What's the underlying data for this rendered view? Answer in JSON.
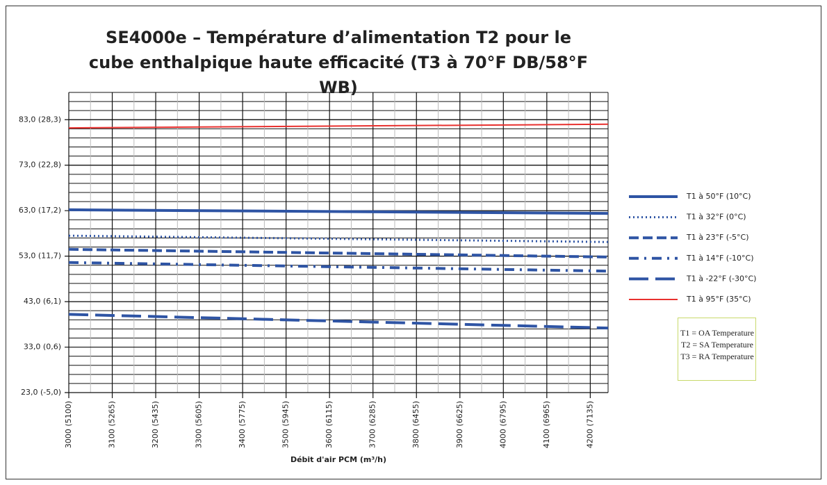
{
  "chart_data": {
    "type": "line",
    "title": "SE4000e – Température d’alimentation T2 pour le cube enthalpique haute efficacité (T3 à 70°F DB/58°F WB)",
    "x_label": "Débit d'air PCM (m³/h)",
    "xlim": [
      3000,
      4241
    ],
    "ylim": [
      23,
      89
    ],
    "xticks": [
      {
        "value": 3000,
        "label": "3000 (5100)"
      },
      {
        "value": 3100,
        "label": "3100 (5265)"
      },
      {
        "value": 3200,
        "label": "3200 (5435)"
      },
      {
        "value": 3300,
        "label": "3300 (5605)"
      },
      {
        "value": 3400,
        "label": "3400 (5775)"
      },
      {
        "value": 3500,
        "label": "3500 (5945)"
      },
      {
        "value": 3600,
        "label": "3600 (6115)"
      },
      {
        "value": 3700,
        "label": "3700 (6285)"
      },
      {
        "value": 3800,
        "label": "3800 (6455)"
      },
      {
        "value": 3900,
        "label": "3900 (6625)"
      },
      {
        "value": 4000,
        "label": "4000 (6795)"
      },
      {
        "value": 4100,
        "label": "4100 (6965)"
      },
      {
        "value": 4200,
        "label": "4200 (7135)"
      }
    ],
    "yticks": [
      {
        "value": 23,
        "label": "23,0 (-5,0)"
      },
      {
        "value": 33,
        "label": "33,0 (0,6)"
      },
      {
        "value": 43,
        "label": "43,0 (6,1)"
      },
      {
        "value": 53,
        "label": "53,0 (11,7)"
      },
      {
        "value": 63,
        "label": "63,0 (17,2)"
      },
      {
        "value": 73,
        "label": "73,0 (22,8)"
      },
      {
        "value": 83,
        "label": "83,0 (28,3)"
      }
    ],
    "grid": true,
    "legend": "right",
    "x": [
      3000,
      4241
    ],
    "series": [
      {
        "name": "T1 à 50°F (10°C)",
        "color": "#2e54a4",
        "style": "solid",
        "values": [
          63.2,
          62.4
        ]
      },
      {
        "name": "T1 à 32°F (0°C)",
        "color": "#2e54a4",
        "style": "dotted",
        "values": [
          57.5,
          56.1
        ]
      },
      {
        "name": "T1 à 23°F (-5°C)",
        "color": "#2e54a4",
        "style": "dashed",
        "values": [
          54.5,
          52.8
        ]
      },
      {
        "name": "T1 à 14°F (-10°C)",
        "color": "#2e54a4",
        "style": "dashdot",
        "values": [
          51.6,
          49.7
        ]
      },
      {
        "name": "T1 à -22°F (-30°C)",
        "color": "#2e54a4",
        "style": "longdash",
        "values": [
          40.2,
          37.2
        ]
      },
      {
        "name": "T1 à 95°F (35°C)",
        "color": "#e8302e",
        "style": "thin",
        "values": [
          81.2,
          82.0
        ]
      }
    ],
    "annotations": [
      "T1 = OA Temperature",
      "T2 = SA Temperature",
      "T3 = RA Temperature"
    ]
  }
}
